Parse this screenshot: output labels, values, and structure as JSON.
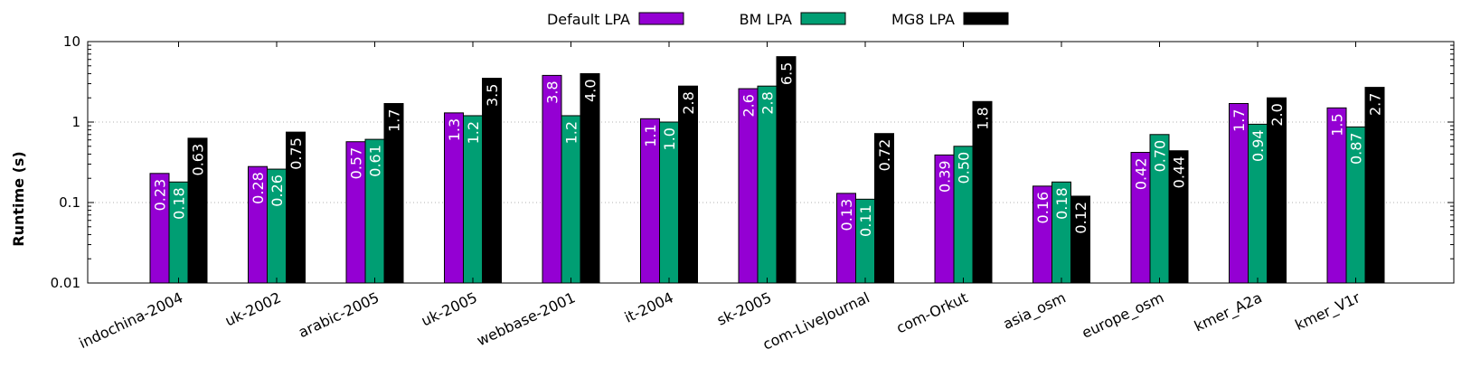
{
  "chart_data": {
    "type": "bar",
    "ylabel": "Runtime (s)",
    "xlabel": "",
    "yscale": "log",
    "ylim": [
      0.01,
      10
    ],
    "yticks": [
      {
        "value": 0.01,
        "label": "0.01"
      },
      {
        "value": 0.1,
        "label": "0.1"
      },
      {
        "value": 1,
        "label": "1"
      },
      {
        "value": 10,
        "label": "10"
      }
    ],
    "grid": "horizontal dotted at major ticks",
    "legend_position": "top-center",
    "categories": [
      "indochina-2004",
      "uk-2002",
      "arabic-2005",
      "uk-2005",
      "webbase-2001",
      "it-2004",
      "sk-2005",
      "com-LiveJournal",
      "com-Orkut",
      "asia_osm",
      "europe_osm",
      "kmer_A2a",
      "kmer_V1r"
    ],
    "series": [
      {
        "name": "Default LPA",
        "color": "#9400d3",
        "label_color": "#ffffff",
        "values": [
          0.23,
          0.28,
          0.57,
          1.3,
          3.8,
          1.1,
          2.6,
          0.13,
          0.39,
          0.16,
          0.42,
          1.7,
          1.5
        ],
        "labels": [
          "0.23",
          "0.28",
          "0.57",
          "1.3",
          "3.8",
          "1.1",
          "2.6",
          "0.13",
          "0.39",
          "0.16",
          "0.42",
          "1.7",
          "1.5"
        ]
      },
      {
        "name": "BM LPA",
        "color": "#009e73",
        "label_color": "#ffffff",
        "values": [
          0.18,
          0.26,
          0.61,
          1.2,
          1.2,
          1.0,
          2.8,
          0.11,
          0.5,
          0.18,
          0.7,
          0.94,
          0.87
        ],
        "labels": [
          "0.18",
          "0.26",
          "0.61",
          "1.2",
          "1.2",
          "1.0",
          "2.8",
          "0.11",
          "0.50",
          "0.18",
          "0.70",
          "0.94",
          "0.87"
        ]
      },
      {
        "name": "MG8 LPA",
        "color": "#000000",
        "label_color": "#ffffff",
        "values": [
          0.63,
          0.75,
          1.7,
          3.5,
          4.0,
          2.8,
          6.5,
          0.72,
          1.8,
          0.12,
          0.44,
          2.0,
          2.7
        ],
        "labels": [
          "0.63",
          "0.75",
          "1.7",
          "3.5",
          "4.0",
          "2.8",
          "6.5",
          "0.72",
          "1.8",
          "0.12",
          "0.44",
          "2.0",
          "2.7"
        ]
      }
    ]
  }
}
